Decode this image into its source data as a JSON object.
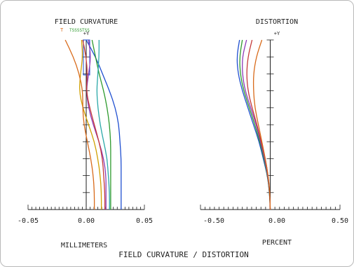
{
  "chart_data": [
    {
      "type": "line",
      "title": "FIELD CURVATURE",
      "xlabel": "MILLIMETERS",
      "xlim": [
        -0.05,
        0.05
      ],
      "xticks": [
        "-0.05",
        "0.00",
        "0.05"
      ],
      "ylim": [
        0,
        1
      ],
      "y_axis_label": "+Y",
      "legend": [
        "T",
        "TSSSSTSS"
      ],
      "series": [
        {
          "color": "#1f4fd0",
          "x": [
            0.0,
            0.008,
            0.014,
            0.02,
            0.025,
            0.028,
            0.029,
            0.03,
            0.03,
            0.03,
            0.03
          ],
          "y": [
            1,
            0.9,
            0.8,
            0.7,
            0.6,
            0.5,
            0.4,
            0.3,
            0.2,
            0.1,
            0.0
          ]
        },
        {
          "color": "#2d9a2d",
          "x": [
            0.005,
            0.008,
            0.011,
            0.015,
            0.018,
            0.02,
            0.021,
            0.021,
            0.021,
            0.021,
            0.021
          ],
          "y": [
            1,
            0.9,
            0.8,
            0.7,
            0.6,
            0.5,
            0.4,
            0.3,
            0.2,
            0.1,
            0.0
          ]
        },
        {
          "color": "#2aa8a8",
          "x": [
            0.011,
            0.011,
            0.01,
            0.009,
            0.01,
            0.012,
            0.015,
            0.018,
            0.019,
            0.02,
            0.02
          ],
          "y": [
            1,
            0.9,
            0.8,
            0.7,
            0.6,
            0.5,
            0.4,
            0.3,
            0.2,
            0.1,
            0.0
          ]
        },
        {
          "color": "#8c3ab8",
          "x": [
            0.002,
            0.004,
            0.002,
            0.0,
            0.002,
            0.006,
            0.011,
            0.015,
            0.017,
            0.017,
            0.017
          ],
          "y": [
            1,
            0.9,
            0.8,
            0.7,
            0.6,
            0.5,
            0.4,
            0.3,
            0.2,
            0.1,
            0.0
          ]
        },
        {
          "color": "#c43a3a",
          "x": [
            -0.003,
            0.0,
            0.001,
            0.0,
            0.003,
            0.007,
            0.011,
            0.014,
            0.015,
            0.016,
            0.016
          ],
          "y": [
            1,
            0.9,
            0.8,
            0.7,
            0.6,
            0.5,
            0.4,
            0.3,
            0.2,
            0.1,
            0.0
          ]
        },
        {
          "color": "#d0a000",
          "x": [
            -0.004,
            -0.003,
            -0.005,
            -0.006,
            -0.003,
            0.002,
            0.007,
            0.01,
            0.012,
            0.013,
            0.013
          ],
          "y": [
            1,
            0.9,
            0.8,
            0.7,
            0.6,
            0.5,
            0.4,
            0.3,
            0.2,
            0.1,
            0.0
          ]
        },
        {
          "color": "#d86a1a",
          "x": [
            -0.018,
            -0.011,
            -0.006,
            -0.003,
            -0.003,
            -0.002,
            0.001,
            0.004,
            0.006,
            0.007,
            0.007
          ],
          "y": [
            1,
            0.9,
            0.8,
            0.7,
            0.6,
            0.5,
            0.4,
            0.3,
            0.2,
            0.1,
            0.0
          ]
        }
      ]
    },
    {
      "type": "line",
      "title": "DISTORTION",
      "xlabel": "PERCENT",
      "xlim": [
        -0.5,
        0.5
      ],
      "xticks": [
        "-0.50",
        "0.00",
        "0.50"
      ],
      "ylim": [
        0,
        1
      ],
      "y_axis_label": "+Y",
      "series": [
        {
          "color": "#1f4fd0",
          "x": [
            -0.22,
            -0.24,
            -0.23,
            -0.2,
            -0.16,
            -0.12,
            -0.08,
            -0.05,
            -0.02,
            -0.005,
            0.0
          ],
          "y": [
            1,
            0.9,
            0.8,
            0.7,
            0.6,
            0.5,
            0.4,
            0.3,
            0.2,
            0.1,
            0.0
          ]
        },
        {
          "color": "#2d9a2d",
          "x": [
            -0.2,
            -0.22,
            -0.215,
            -0.19,
            -0.15,
            -0.11,
            -0.075,
            -0.045,
            -0.02,
            -0.005,
            0.0
          ],
          "y": [
            1,
            0.9,
            0.8,
            0.7,
            0.6,
            0.5,
            0.4,
            0.3,
            0.2,
            0.1,
            0.0
          ]
        },
        {
          "color": "#8c3ab8",
          "x": [
            -0.17,
            -0.2,
            -0.2,
            -0.18,
            -0.14,
            -0.1,
            -0.07,
            -0.04,
            -0.018,
            -0.004,
            0.0
          ],
          "y": [
            1,
            0.9,
            0.8,
            0.7,
            0.6,
            0.5,
            0.4,
            0.3,
            0.2,
            0.1,
            0.0
          ]
        },
        {
          "color": "#c43a3a",
          "x": [
            -0.13,
            -0.16,
            -0.17,
            -0.16,
            -0.13,
            -0.095,
            -0.065,
            -0.035,
            -0.015,
            -0.003,
            0.0
          ],
          "y": [
            1,
            0.9,
            0.8,
            0.7,
            0.6,
            0.5,
            0.4,
            0.3,
            0.2,
            0.1,
            0.0
          ]
        },
        {
          "color": "#d86a1a",
          "x": [
            -0.06,
            -0.1,
            -0.12,
            -0.12,
            -0.11,
            -0.085,
            -0.06,
            -0.035,
            -0.015,
            -0.003,
            0.0
          ],
          "y": [
            1,
            0.9,
            0.8,
            0.7,
            0.6,
            0.5,
            0.4,
            0.3,
            0.2,
            0.1,
            0.0
          ]
        }
      ]
    }
  ],
  "footer": {
    "caption": "FIELD CURVATURE / DISTORTION"
  },
  "colors": {
    "axis": "#1e1e1e",
    "frame": "#b9b9b9",
    "legend_T": "#d86a1a",
    "legend_S": "#2d9a2d"
  }
}
